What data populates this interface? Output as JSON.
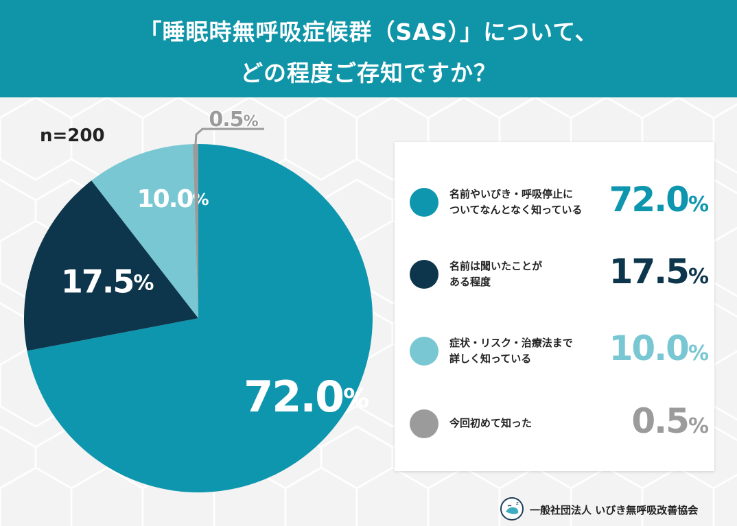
{
  "header": {
    "title_line1": "「睡眠時無呼吸症候群（SAS）」について、",
    "title_line2": "どの程度ご存知ですか？"
  },
  "sample_label": "n=200",
  "colors": {
    "header_bg": "#0f94a8",
    "slice_know_somewhat": "#0e96ae",
    "slice_heard_name": "#0d364c",
    "slice_know_details": "#78c7d2",
    "slice_first_time": "#9b9b9b"
  },
  "chart_data": {
    "type": "pie",
    "title": "「睡眠時無呼吸症候群（SAS）」について、どの程度ご存知ですか？",
    "n": "n=200",
    "slices": [
      {
        "label": "名前やいびき・呼吸停止についてなんとなく知っている",
        "value": 72.0,
        "value_label": "72.0",
        "color": "#0e96ae"
      },
      {
        "label": "名前は聞いたことがある程度",
        "value": 17.5,
        "value_label": "17.5",
        "color": "#0d364c"
      },
      {
        "label": "症状・リスク・治療法まで詳しく知っている",
        "value": 10.0,
        "value_label": "10.0",
        "color": "#78c7d2"
      },
      {
        "label": "今回初めて知った",
        "value": 0.5,
        "value_label": "0.5",
        "color": "#9b9b9b"
      }
    ],
    "unit": "%",
    "legend_placement": "right"
  },
  "legend": {
    "items": [
      {
        "line1": "名前やいびき・呼吸停止に",
        "line2": "ついてなんとなく知っている",
        "value": "72.0",
        "unit": "%"
      },
      {
        "line1": "名前は聞いたことが",
        "line2": "ある程度",
        "value": "17.5",
        "unit": "%"
      },
      {
        "line1": "症状・リスク・治療法まで",
        "line2": "詳しく知っている",
        "value": "10.0",
        "unit": "%"
      },
      {
        "line1": "今回初めて知った",
        "line2": "",
        "value": "0.5",
        "unit": "%"
      }
    ]
  },
  "footer": {
    "organization": "一般社団法人 いびき無呼吸改善協会",
    "logo_icon": "sleeping-face-logo-icon"
  }
}
